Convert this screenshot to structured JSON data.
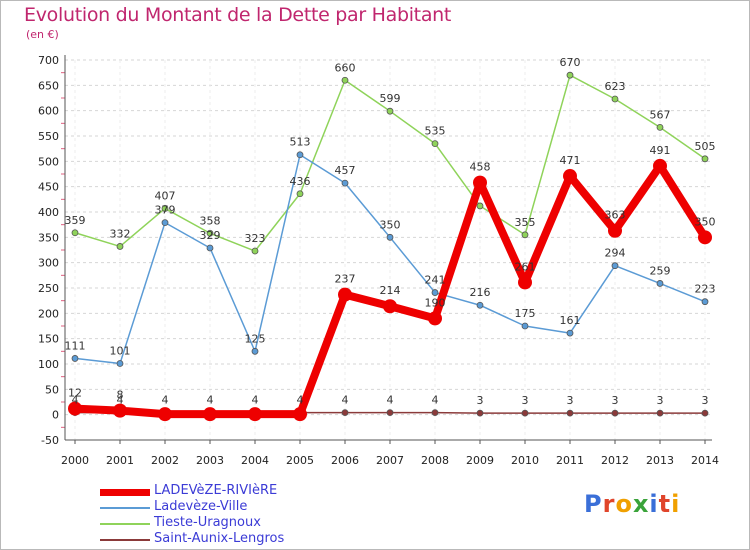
{
  "header": {
    "title": "Evolution du Montant de la Dette par Habitant",
    "unit": "(en €)"
  },
  "logo": {
    "text": "Proxiti",
    "letter_colors": [
      "#3a6fd8",
      "#e0452b",
      "#f0a000",
      "#3aa33a",
      "#3a6fd8",
      "#e0452b",
      "#f0a000"
    ]
  },
  "chart_data": {
    "type": "line",
    "title": "Evolution du Montant de la Dette par Habitant",
    "ylabel": "(en €)",
    "xlabel": "",
    "ylim": [
      -50,
      700
    ],
    "y_ticks": [
      -50,
      0,
      50,
      100,
      150,
      200,
      250,
      300,
      350,
      400,
      450,
      500,
      550,
      600,
      650,
      700
    ],
    "x": [
      "2000",
      "2001",
      "2002",
      "2003",
      "2004",
      "2005",
      "2006",
      "2007",
      "2008",
      "2009",
      "2010",
      "2011",
      "2012",
      "2013",
      "2014"
    ],
    "grid": "horizontal dashed",
    "legend_placement": "bottom-left",
    "series": [
      {
        "name": "Tieste-Uragnoux",
        "color": "#8fd35a",
        "values": [
          359,
          332,
          407,
          358,
          323,
          436,
          660,
          599,
          535,
          412,
          355,
          670,
          623,
          567,
          505
        ],
        "labels": [
          "359",
          "332",
          "407",
          "358",
          "323",
          "436",
          "660",
          "599",
          "535",
          "",
          "355",
          "670",
          "623",
          "567",
          "505"
        ]
      },
      {
        "name": "Ladevèze-Ville",
        "color": "#5b9bd5",
        "values": [
          111,
          101,
          379,
          329,
          125,
          513,
          457,
          350,
          241,
          216,
          175,
          161,
          294,
          259,
          223
        ],
        "labels": [
          "111",
          "101",
          "379",
          "329",
          "125",
          "513",
          "457",
          "350",
          "241",
          "216",
          "175",
          "161",
          "294",
          "259",
          "223"
        ]
      },
      {
        "name": "Saint-Aunix-Lengros",
        "color": "#8b3a3a",
        "values": [
          4,
          4,
          4,
          4,
          4,
          4,
          4,
          4,
          4,
          3,
          3,
          3,
          3,
          3,
          3
        ],
        "labels": [
          "4",
          "4",
          "4",
          "4",
          "4",
          "4",
          "4",
          "4",
          "4",
          "3",
          "3",
          "3",
          "3",
          "3",
          "3"
        ]
      },
      {
        "name": "LADEVèZE-RIVIèRE",
        "color": "#ee0000",
        "values": [
          12,
          8,
          1,
          1,
          1,
          1,
          237,
          214,
          190,
          458,
          261,
          471,
          363,
          491,
          350
        ],
        "labels": [
          "12",
          "8",
          "",
          "",
          "",
          "",
          "237",
          "214",
          "190",
          "458",
          "261",
          "471",
          "363",
          "491",
          "350"
        ]
      }
    ]
  },
  "legend": {
    "items": [
      {
        "label": "LADEVèZE-RIVIèRE",
        "color": "#ee0000",
        "thickness": 7
      },
      {
        "label": "Ladevèze-Ville",
        "color": "#5b9bd5",
        "thickness": 2
      },
      {
        "label": "Tieste-Uragnoux",
        "color": "#8fd35a",
        "thickness": 2
      },
      {
        "label": "Saint-Aunix-Lengros",
        "color": "#8b3a3a",
        "thickness": 2
      }
    ]
  }
}
